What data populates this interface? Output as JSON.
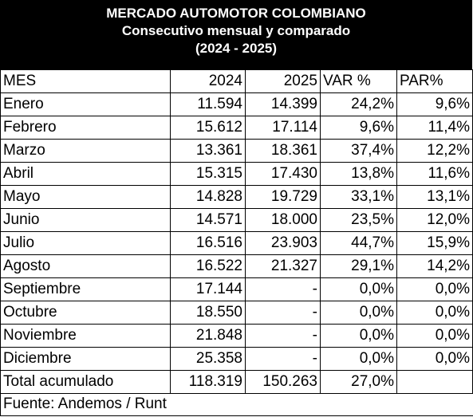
{
  "header": {
    "title": "MERCADO AUTOMOTOR COLOMBIANO",
    "subtitle": "Consecutivo mensual y comparado",
    "period": "(2024 - 2025)"
  },
  "columns": [
    "MES",
    "2024",
    "2025",
    "VAR %",
    "PAR%"
  ],
  "rows": [
    [
      "Enero",
      "11.594",
      "14.399",
      "24,2%",
      "9,6%"
    ],
    [
      "Febrero",
      "15.612",
      "17.114",
      "9,6%",
      "11,4%"
    ],
    [
      "Marzo",
      "13.361",
      "18.361",
      "37,4%",
      "12,2%"
    ],
    [
      "Abril",
      "15.315",
      "17.430",
      "13,8%",
      "11,6%"
    ],
    [
      "Mayo",
      "14.828",
      "19.729",
      "33,1%",
      "13,1%"
    ],
    [
      "Junio",
      "14.571",
      "18.000",
      "23,5%",
      "12,0%"
    ],
    [
      "Julio",
      "16.516",
      "23.903",
      "44,7%",
      "15,9%"
    ],
    [
      "Agosto",
      "16.522",
      "21.327",
      "29,1%",
      "14,2%"
    ],
    [
      "Septiembre",
      "17.144",
      "-",
      "0,0%",
      "0,0%"
    ],
    [
      "Octubre",
      "18.550",
      "-",
      "0,0%",
      "0,0%"
    ],
    [
      "Noviembre",
      "21.848",
      "-",
      "0,0%",
      "0,0%"
    ],
    [
      "Diciembre",
      "25.358",
      "-",
      "0,0%",
      "0,0%"
    ],
    [
      "Total acumulado",
      "118.319",
      "150.263",
      "27,0%",
      ""
    ]
  ],
  "footer": "Fuente: Andemos / Runt"
}
